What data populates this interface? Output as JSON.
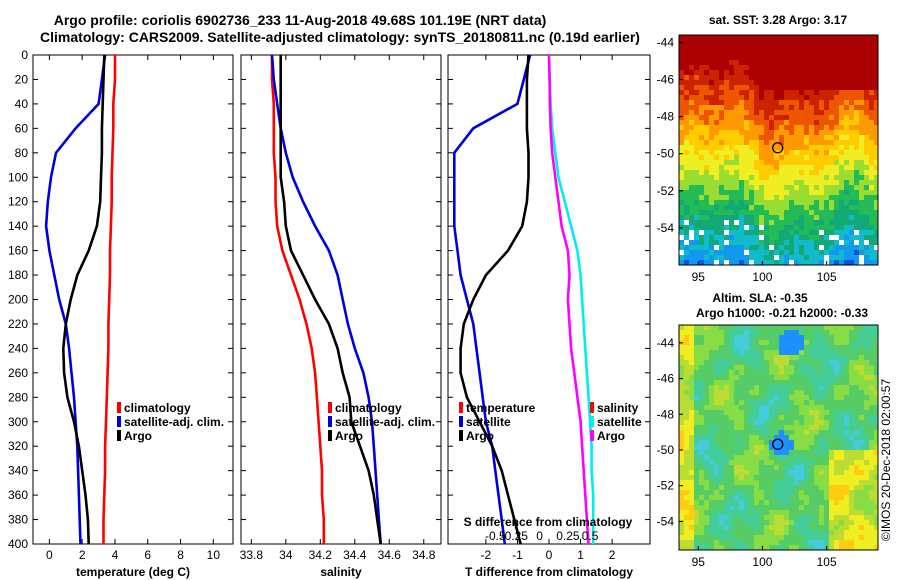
{
  "header": {
    "title_line1": "Argo profile: coriolis 6902736_233 11-Aug-2018 49.68S 101.19E (NRT data)",
    "title_line2": "Climatology: CARS2009. Satellite-adjusted climatology: synTS_20180811.nc (0.19d earlier)"
  },
  "colors": {
    "climatology": "#ff0000",
    "satellite": "#0000dd",
    "argo": "#000000",
    "cyan": "#00eeee",
    "magenta": "#ff00ff"
  },
  "credit": "©IMOS 20-Dec-2018 02:00:57",
  "chart_data": [
    {
      "id": "temperature",
      "type": "line",
      "xlabel": "temperature (deg C)",
      "ylabel": "",
      "xlim": [
        -1,
        11.2
      ],
      "ylim": [
        400,
        0
      ],
      "xticks": [
        0,
        2,
        4,
        6,
        8,
        10
      ],
      "xtick_labels": [
        "0",
        "2",
        "4",
        "6",
        "8",
        "10"
      ],
      "yticks": [
        0,
        20,
        40,
        60,
        80,
        100,
        120,
        140,
        160,
        180,
        200,
        220,
        240,
        260,
        280,
        300,
        320,
        340,
        360,
        380,
        400
      ],
      "ytick_labels": [
        "0",
        "20",
        "40",
        "60",
        "80",
        "100",
        "120",
        "140",
        "160",
        "180",
        "200",
        "220",
        "240",
        "260",
        "280",
        "300",
        "320",
        "340",
        "360",
        "380",
        "400"
      ],
      "legend": [
        "climatology",
        "satellite-adj. clim.",
        "Argo"
      ],
      "series": [
        {
          "name": "climatology",
          "color": "#ff0000",
          "x": [
            4.0,
            4.0,
            3.9,
            3.9,
            3.85,
            3.8,
            3.8,
            3.75,
            3.7,
            3.7,
            3.65,
            3.6,
            3.6,
            3.55,
            3.5,
            3.45,
            3.4,
            3.4,
            3.35,
            3.3,
            3.3
          ],
          "y": [
            0,
            20,
            40,
            60,
            80,
            100,
            120,
            140,
            160,
            180,
            200,
            220,
            240,
            260,
            280,
            300,
            320,
            340,
            360,
            380,
            400
          ]
        },
        {
          "name": "satellite-adj. clim.",
          "color": "#0000dd",
          "x": [
            3.4,
            3.2,
            3.0,
            1.6,
            0.4,
            0.1,
            -0.1,
            -0.2,
            0.0,
            0.3,
            0.6,
            1.0,
            1.2,
            1.35,
            1.5,
            1.6,
            1.7,
            1.75,
            1.8,
            1.85,
            1.9
          ],
          "y": [
            0,
            20,
            40,
            60,
            80,
            100,
            120,
            140,
            160,
            180,
            200,
            220,
            240,
            260,
            280,
            300,
            320,
            340,
            360,
            380,
            400
          ]
        },
        {
          "name": "Argo",
          "color": "#000000",
          "x": [
            3.35,
            3.3,
            3.25,
            3.2,
            3.2,
            3.15,
            3.1,
            2.9,
            2.4,
            1.7,
            1.3,
            1.0,
            0.85,
            0.9,
            1.1,
            1.5,
            1.8,
            2.0,
            2.2,
            2.35,
            2.4
          ],
          "y": [
            0,
            20,
            40,
            60,
            80,
            100,
            120,
            140,
            160,
            180,
            200,
            220,
            240,
            260,
            280,
            300,
            320,
            340,
            360,
            380,
            400
          ]
        }
      ]
    },
    {
      "id": "salinity",
      "type": "line",
      "xlabel": "salinity",
      "ylabel": "",
      "xlim": [
        33.74,
        34.9
      ],
      "ylim": [
        400,
        0
      ],
      "xticks": [
        33.8,
        34.0,
        34.2,
        34.4,
        34.6,
        34.8
      ],
      "xtick_labels": [
        "33.8",
        "34",
        "34.2",
        "34.4",
        "34.6",
        "34.8"
      ],
      "legend": [
        "climatology",
        "satellite-adj. clim.",
        "Argo"
      ],
      "series": [
        {
          "name": "climatology",
          "color": "#ff0000",
          "x": [
            33.92,
            33.92,
            33.93,
            33.93,
            33.93,
            33.94,
            33.94,
            33.95,
            33.98,
            34.03,
            34.08,
            34.12,
            34.15,
            34.17,
            34.18,
            34.19,
            34.2,
            34.21,
            34.21,
            34.22,
            34.22
          ],
          "y": [
            0,
            20,
            40,
            60,
            80,
            100,
            120,
            140,
            160,
            180,
            200,
            220,
            240,
            260,
            280,
            300,
            320,
            340,
            360,
            380,
            400
          ]
        },
        {
          "name": "satellite-adj. clim.",
          "color": "#0000dd",
          "x": [
            33.92,
            33.93,
            33.95,
            33.97,
            34.0,
            34.04,
            34.1,
            34.17,
            34.25,
            34.3,
            34.33,
            34.36,
            34.4,
            34.45,
            34.48,
            34.5,
            34.51,
            34.52,
            34.53,
            34.54,
            34.55
          ],
          "y": [
            0,
            20,
            40,
            60,
            80,
            100,
            120,
            140,
            160,
            180,
            200,
            220,
            240,
            260,
            280,
            300,
            320,
            340,
            360,
            380,
            400
          ]
        },
        {
          "name": "Argo",
          "color": "#000000",
          "x": [
            33.97,
            33.97,
            33.97,
            33.97,
            33.97,
            33.97,
            33.99,
            34.0,
            34.03,
            34.1,
            34.17,
            34.25,
            34.3,
            34.33,
            34.37,
            34.38,
            34.43,
            34.48,
            34.51,
            34.53,
            34.55
          ],
          "y": [
            0,
            20,
            40,
            60,
            80,
            100,
            120,
            140,
            160,
            180,
            200,
            220,
            240,
            260,
            280,
            300,
            320,
            340,
            360,
            380,
            400
          ]
        }
      ]
    },
    {
      "id": "difference",
      "type": "line",
      "xlabel": "T difference from climatology",
      "xlabel_top": "S difference from climatology",
      "xlim": [
        -3.2,
        3.2
      ],
      "ylim": [
        400,
        0
      ],
      "xticks": [
        -2,
        -1,
        0,
        1,
        2
      ],
      "xtick_labels": [
        "-2",
        "-1",
        "0",
        "1",
        "2"
      ],
      "s_xticks_T": [
        -1.7,
        -1.1,
        -0.3,
        0.6,
        1.3
      ],
      "s_xtick_labels": [
        "-0.5",
        "-0.25",
        "0",
        "0.25",
        "0.5"
      ],
      "legend_left": [
        "temperature",
        "satellite",
        "Argo"
      ],
      "legend_right": [
        "salinity",
        "satellite",
        "Argo"
      ],
      "series": [
        {
          "name": "T satellite",
          "color": "#0000dd",
          "x": [
            -0.6,
            -0.8,
            -1.0,
            -2.4,
            -3.0,
            -3.0,
            -3.0,
            -3.0,
            -2.9,
            -2.8,
            -2.6,
            -2.4,
            -2.3,
            -2.2,
            -2.1,
            -2.0,
            -1.8,
            -1.7,
            -1.6,
            -1.5,
            -1.4
          ],
          "y": [
            0,
            20,
            40,
            60,
            80,
            100,
            120,
            140,
            160,
            180,
            200,
            220,
            240,
            260,
            280,
            300,
            320,
            340,
            360,
            380,
            400
          ]
        },
        {
          "name": "T Argo",
          "color": "#000000",
          "x": [
            -0.65,
            -0.7,
            -0.7,
            -0.7,
            -0.65,
            -0.65,
            -0.7,
            -0.85,
            -1.3,
            -2.0,
            -2.4,
            -2.7,
            -2.8,
            -2.8,
            -2.6,
            -2.2,
            -1.8,
            -1.5,
            -1.3,
            -1.1,
            -0.9
          ],
          "y": [
            0,
            20,
            40,
            60,
            80,
            100,
            120,
            140,
            160,
            180,
            200,
            220,
            240,
            260,
            280,
            300,
            320,
            340,
            360,
            380,
            400
          ]
        },
        {
          "name": "S satellite",
          "color": "#00eeee",
          "x": [
            0.0,
            0.02,
            0.05,
            0.1,
            0.2,
            0.3,
            0.5,
            0.7,
            0.9,
            1.0,
            1.05,
            1.1,
            1.15,
            1.2,
            1.25,
            1.3,
            1.35,
            1.35,
            1.4,
            1.4,
            1.4
          ],
          "y": [
            0,
            20,
            40,
            60,
            80,
            100,
            120,
            140,
            160,
            180,
            200,
            220,
            240,
            260,
            280,
            300,
            320,
            340,
            360,
            380,
            400
          ]
        },
        {
          "name": "S Argo",
          "color": "#ff00ff",
          "x": [
            0.0,
            0.02,
            0.03,
            0.05,
            0.1,
            0.2,
            0.3,
            0.4,
            0.6,
            0.65,
            0.6,
            0.65,
            0.7,
            0.8,
            0.9,
            1.0,
            1.05,
            1.1,
            1.15,
            1.2,
            1.25
          ],
          "y": [
            0,
            20,
            40,
            60,
            80,
            100,
            120,
            140,
            160,
            180,
            200,
            220,
            240,
            260,
            280,
            300,
            320,
            340,
            360,
            380,
            400
          ]
        }
      ]
    },
    {
      "id": "sst_map",
      "type": "heatmap",
      "title": "sat. SST: 3.28 Argo: 3.17",
      "xlim": [
        93.5,
        109
      ],
      "ylim": [
        -56,
        -43.6
      ],
      "xticks": [
        95,
        100,
        105
      ],
      "xtick_labels": [
        "95",
        "100",
        "105"
      ],
      "yticks": [
        -44,
        -46,
        -48,
        -50,
        -52,
        -54
      ],
      "ytick_labels": [
        "-44",
        "-46",
        "-48",
        "-50",
        "-52",
        "-54"
      ],
      "marker": {
        "lon": 101.19,
        "lat": -49.68
      }
    },
    {
      "id": "sla_map",
      "type": "heatmap",
      "title": "Altim. SLA: -0.35",
      "subtitle": "Argo h1000: -0.21 h2000: -0.33",
      "xlim": [
        93.5,
        109
      ],
      "ylim": [
        -55.6,
        -43
      ],
      "xticks": [
        95,
        100,
        105
      ],
      "xtick_labels": [
        "95",
        "100",
        "105"
      ],
      "yticks": [
        -44,
        -46,
        -48,
        -50,
        -52,
        -54
      ],
      "ytick_labels": [
        "-44",
        "-46",
        "-48",
        "-50",
        "-52",
        "-54"
      ],
      "marker": {
        "lon": 101.19,
        "lat": -49.68
      }
    }
  ]
}
